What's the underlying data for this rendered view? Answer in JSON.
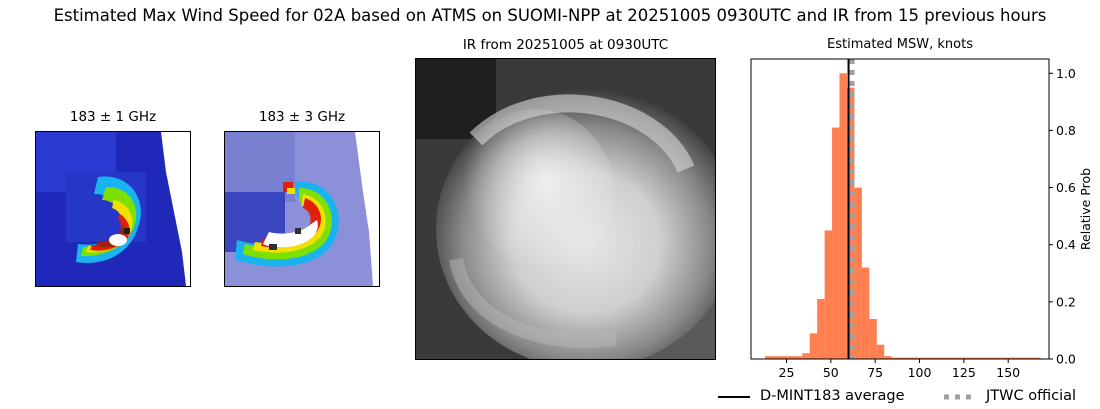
{
  "figure": {
    "title": "Estimated Max Wind Speed for 02A based on ATMS on SUOMI-NPP at 20251005 0930UTC and IR from 15 previous hours"
  },
  "panels": {
    "mw1": {
      "title": "183 ± 1 GHz"
    },
    "mw3": {
      "title": "183 ± 3 GHz"
    },
    "ir": {
      "title": "IR from 20251005 at 0930UTC"
    }
  },
  "legend": {
    "dmint_label": "D-MINT183 average",
    "jtwc_label": "JTWC official"
  },
  "chart_data": {
    "type": "bar",
    "title": "Estimated MSW, knots",
    "xlabel": "",
    "ylabel": "Relative Prob",
    "xlim": [
      5,
      173
    ],
    "ylim": [
      0,
      1.05
    ],
    "xticks": [
      25,
      50,
      75,
      100,
      125,
      150
    ],
    "yticks": [
      0.0,
      0.2,
      0.4,
      0.6,
      0.8,
      1.0
    ],
    "bin_width": 4.2,
    "bins": [
      {
        "x": 15,
        "y": 0.01
      },
      {
        "x": 19.2,
        "y": 0.01
      },
      {
        "x": 23.4,
        "y": 0.01
      },
      {
        "x": 27.6,
        "y": 0.01
      },
      {
        "x": 31.8,
        "y": 0.01
      },
      {
        "x": 36,
        "y": 0.02
      },
      {
        "x": 40.2,
        "y": 0.09
      },
      {
        "x": 44.4,
        "y": 0.21
      },
      {
        "x": 48.6,
        "y": 0.45
      },
      {
        "x": 52.8,
        "y": 0.81
      },
      {
        "x": 57,
        "y": 1.0
      },
      {
        "x": 61.2,
        "y": 0.95
      },
      {
        "x": 65.4,
        "y": 0.6
      },
      {
        "x": 69.6,
        "y": 0.32
      },
      {
        "x": 73.8,
        "y": 0.14
      },
      {
        "x": 78,
        "y": 0.05
      },
      {
        "x": 82.2,
        "y": 0.01
      },
      {
        "x": 86.4,
        "y": 0.005
      },
      {
        "x": 90.6,
        "y": 0.005
      },
      {
        "x": 94.8,
        "y": 0.005
      },
      {
        "x": 99,
        "y": 0.005
      },
      {
        "x": 103.2,
        "y": 0.005
      },
      {
        "x": 107.4,
        "y": 0.005
      },
      {
        "x": 111.6,
        "y": 0.005
      },
      {
        "x": 115.8,
        "y": 0.005
      },
      {
        "x": 120,
        "y": 0.005
      },
      {
        "x": 124.2,
        "y": 0.005
      },
      {
        "x": 128.4,
        "y": 0.005
      },
      {
        "x": 132.6,
        "y": 0.005
      },
      {
        "x": 136.8,
        "y": 0.005
      },
      {
        "x": 141,
        "y": 0.005
      },
      {
        "x": 145.2,
        "y": 0.005
      },
      {
        "x": 149.4,
        "y": 0.005
      },
      {
        "x": 153.6,
        "y": 0.005
      },
      {
        "x": 157.8,
        "y": 0.005
      },
      {
        "x": 162,
        "y": 0.005
      },
      {
        "x": 166.2,
        "y": 0.005
      }
    ],
    "dmint_average": 60,
    "jtwc_official": 62,
    "colors": {
      "bars": "#ff7f50",
      "dmint": "#000000",
      "jtwc": "#a0a0a0"
    },
    "legend_placement": "bottom"
  }
}
